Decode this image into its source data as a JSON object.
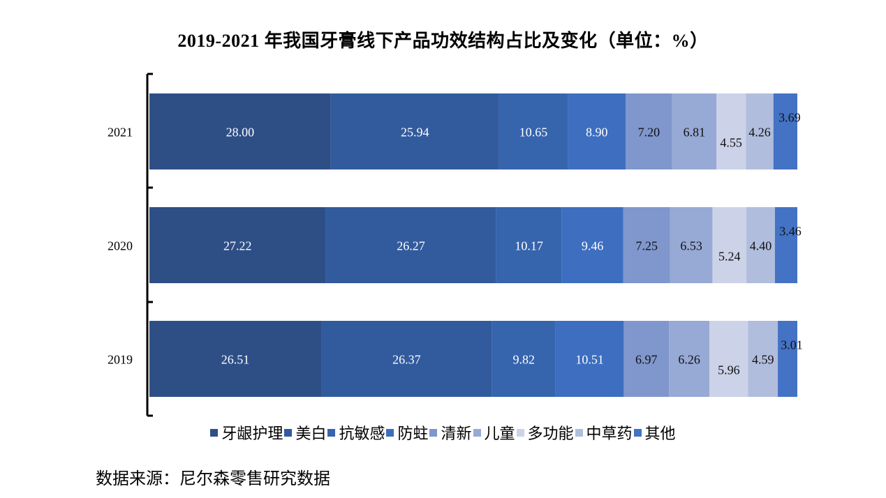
{
  "chart_data": {
    "type": "bar",
    "orientation": "horizontal",
    "stacked": true,
    "title": "2019-2021 年我国牙膏线下产品功效结构占比及变化（单位：%）",
    "categories": [
      "2021",
      "2020",
      "2019"
    ],
    "series": [
      {
        "name": "牙龈护理",
        "color": "#2e4f86",
        "values": [
          "28.00",
          "27.22",
          "26.51"
        ]
      },
      {
        "name": "美白",
        "color": "#325b9d",
        "values": [
          "25.94",
          "26.27",
          "26.37"
        ]
      },
      {
        "name": "抗敏感",
        "color": "#3664ad",
        "values": [
          "10.65",
          "10.17",
          "9.82"
        ]
      },
      {
        "name": "防蛀",
        "color": "#3d6ebf",
        "values": [
          "8.90",
          "9.46",
          "10.51"
        ]
      },
      {
        "name": "清新",
        "color": "#7f97cc",
        "values": [
          "7.20",
          "7.25",
          "6.97"
        ]
      },
      {
        "name": "儿童",
        "color": "#97a9d5",
        "values": [
          "6.81",
          "6.53",
          "6.26"
        ]
      },
      {
        "name": "多功能",
        "color": "#ccd2e8",
        "values": [
          "4.55",
          "5.24",
          "5.96"
        ]
      },
      {
        "name": "中草药",
        "color": "#b1bddd",
        "values": [
          "4.26",
          "4.40",
          "4.59"
        ]
      },
      {
        "name": "其他",
        "color": "#4472c4",
        "values": [
          "3.69",
          "3.46",
          "3.01"
        ]
      }
    ],
    "xlim": [
      0,
      100
    ],
    "legend_position": "bottom",
    "grid": false
  },
  "source_note": "数据来源：尼尔森零售研究数据"
}
